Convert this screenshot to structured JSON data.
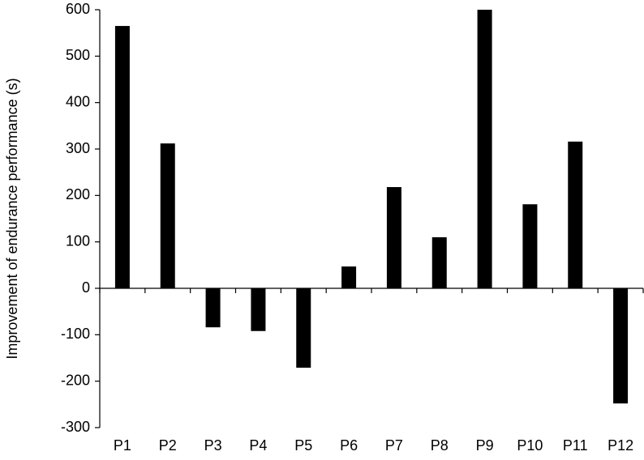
{
  "chart_data": {
    "type": "bar",
    "y_label": "Improvement of endurance performance (s)",
    "categories": [
      "P1",
      "P2",
      "P3",
      "P4",
      "P5",
      "P6",
      "P7",
      "P8",
      "P9",
      "P10",
      "P11",
      "P12"
    ],
    "values": [
      565,
      312,
      -84,
      -92,
      -171,
      47,
      218,
      110,
      600,
      181,
      316,
      -248
    ],
    "color": "#000000",
    "ylim": [
      -300,
      600
    ],
    "yticks": [
      -300,
      -200,
      -100,
      0,
      100,
      200,
      300,
      400,
      500,
      600
    ],
    "grid": false
  }
}
